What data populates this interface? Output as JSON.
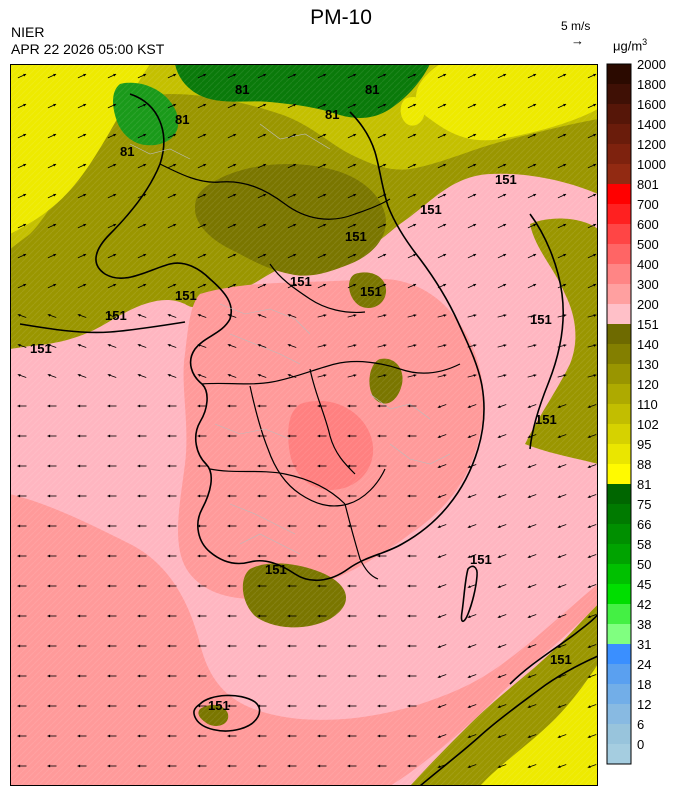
{
  "header": {
    "title": "PM-10",
    "agency": "NIER",
    "datetime": "APR 22 2026 05:00 KST",
    "wind_reference": "5 m/s",
    "wind_reference_arrow": "→",
    "unit": "μg/m",
    "unit_superscript": "3"
  },
  "legend": {
    "levels": [
      {
        "label": "2000",
        "color": "#2b0a00"
      },
      {
        "label": "1800",
        "color": "#3f1005"
      },
      {
        "label": "1600",
        "color": "#561608"
      },
      {
        "label": "1400",
        "color": "#6a1c0b"
      },
      {
        "label": "1200",
        "color": "#7e220e"
      },
      {
        "label": "1000",
        "color": "#922a12"
      },
      {
        "label": "801",
        "color": "#ff0000"
      },
      {
        "label": "700",
        "color": "#ff2020"
      },
      {
        "label": "600",
        "color": "#ff4545"
      },
      {
        "label": "500",
        "color": "#ff6565"
      },
      {
        "label": "400",
        "color": "#ff8585"
      },
      {
        "label": "300",
        "color": "#ffa0a0"
      },
      {
        "label": "200",
        "color": "#ffc0c8"
      },
      {
        "label": "151",
        "color": "#6e6a00"
      },
      {
        "label": "140",
        "color": "#837f00"
      },
      {
        "label": "130",
        "color": "#999500"
      },
      {
        "label": "120",
        "color": "#aeaa00"
      },
      {
        "label": "110",
        "color": "#c2be00"
      },
      {
        "label": "102",
        "color": "#d6d200"
      },
      {
        "label": "95",
        "color": "#eae600"
      },
      {
        "label": "88",
        "color": "#fffa00"
      },
      {
        "label": "81",
        "color": "#006600"
      },
      {
        "label": "75",
        "color": "#007a00"
      },
      {
        "label": "66",
        "color": "#008f00"
      },
      {
        "label": "58",
        "color": "#00a300"
      },
      {
        "label": "50",
        "color": "#00c000"
      },
      {
        "label": "45",
        "color": "#00de00"
      },
      {
        "label": "42",
        "color": "#44f044"
      },
      {
        "label": "38",
        "color": "#80ff80"
      },
      {
        "label": "31",
        "color": "#3a8fff"
      },
      {
        "label": "24",
        "color": "#5aa0f0"
      },
      {
        "label": "18",
        "color": "#72aee8"
      },
      {
        "label": "12",
        "color": "#88bae2"
      },
      {
        "label": "6",
        "color": "#98c4dc"
      },
      {
        "label": "0",
        "color": "#a5cde0"
      }
    ]
  },
  "map": {
    "contour_labels": [
      "81",
      "81",
      "81",
      "81",
      "81",
      "151",
      "151",
      "151",
      "151",
      "151",
      "151",
      "151",
      "151",
      "151",
      "151",
      "151",
      "151",
      "151",
      "151"
    ],
    "colors": {
      "pink_low": "#ffb6c1",
      "pink_mid": "#ff9a9a",
      "pink_high": "#ff8080",
      "olive_dark": "#7a7600",
      "olive": "#9a9600",
      "olive_light": "#c4c000",
      "yellow": "#eeea00",
      "green_dark": "#0a7a0a",
      "green": "#1a9a1a",
      "coast": "#000000",
      "admin": "#bbbbbb",
      "arrow": "#000000"
    }
  }
}
